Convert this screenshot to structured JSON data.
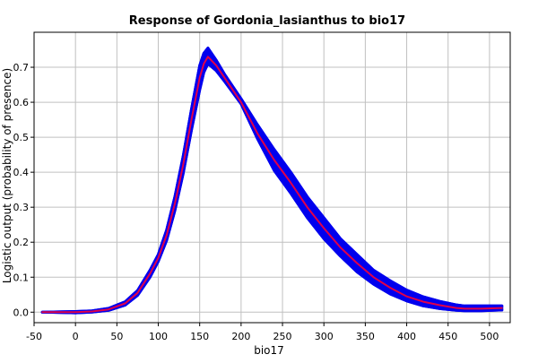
{
  "chart_data": {
    "type": "line",
    "title": "Response of Gordonia_lasianthus to bio17",
    "xlabel": "bio17",
    "ylabel": "Logistic output (probability of presence)",
    "xlim": [
      -50,
      525
    ],
    "ylim": [
      -0.03,
      0.8
    ],
    "xticks": [
      -50,
      0,
      50,
      100,
      150,
      200,
      250,
      300,
      350,
      400,
      450,
      500
    ],
    "yticks": [
      0.0,
      0.1,
      0.2,
      0.3,
      0.4,
      0.5,
      0.6,
      0.7
    ],
    "xtick_labels": [
      "-50",
      "0",
      "50",
      "100",
      "150",
      "200",
      "250",
      "300",
      "350",
      "400",
      "450",
      "500"
    ],
    "ytick_labels": [
      "0.0",
      "0.1",
      "0.2",
      "0.3",
      "0.4",
      "0.5",
      "0.6",
      "0.7"
    ],
    "grid": true,
    "series": [
      {
        "role": "mean",
        "color": "#e0004a",
        "x": [
          -40,
          0,
          20,
          40,
          60,
          75,
          90,
          100,
          110,
          120,
          130,
          140,
          150,
          155,
          160,
          170,
          180,
          200,
          220,
          240,
          260,
          280,
          300,
          320,
          340,
          360,
          380,
          400,
          420,
          440,
          460,
          470,
          490,
          515
        ],
        "y": [
          0.0,
          0.0,
          0.002,
          0.008,
          0.025,
          0.055,
          0.11,
          0.155,
          0.22,
          0.31,
          0.42,
          0.55,
          0.67,
          0.71,
          0.73,
          0.705,
          0.67,
          0.6,
          0.51,
          0.435,
          0.37,
          0.3,
          0.24,
          0.185,
          0.14,
          0.1,
          0.07,
          0.045,
          0.03,
          0.02,
          0.012,
          0.01,
          0.01,
          0.012
        ]
      },
      {
        "role": "upper",
        "color": "#0000ee",
        "x": [
          -40,
          0,
          20,
          40,
          60,
          75,
          90,
          100,
          110,
          120,
          130,
          140,
          150,
          155,
          160,
          170,
          180,
          200,
          220,
          240,
          260,
          280,
          300,
          320,
          340,
          360,
          380,
          400,
          420,
          440,
          460,
          470,
          490,
          515
        ],
        "y": [
          0.0,
          0.002,
          0.004,
          0.011,
          0.03,
          0.062,
          0.12,
          0.165,
          0.235,
          0.33,
          0.445,
          0.58,
          0.705,
          0.74,
          0.755,
          0.72,
          0.68,
          0.61,
          0.535,
          0.465,
          0.4,
          0.33,
          0.27,
          0.21,
          0.165,
          0.12,
          0.09,
          0.063,
          0.044,
          0.031,
          0.021,
          0.018,
          0.018,
          0.018
        ]
      },
      {
        "role": "lower",
        "color": "#0000ee",
        "x": [
          -40,
          0,
          20,
          40,
          60,
          75,
          90,
          100,
          110,
          120,
          130,
          140,
          150,
          155,
          160,
          170,
          180,
          200,
          220,
          240,
          260,
          280,
          300,
          320,
          340,
          360,
          380,
          400,
          420,
          440,
          460,
          470,
          490,
          515
        ],
        "y": [
          0.0,
          -0.002,
          0.0,
          0.005,
          0.02,
          0.048,
          0.1,
          0.145,
          0.205,
          0.29,
          0.395,
          0.52,
          0.635,
          0.685,
          0.71,
          0.69,
          0.66,
          0.595,
          0.495,
          0.405,
          0.34,
          0.27,
          0.21,
          0.16,
          0.115,
          0.08,
          0.052,
          0.032,
          0.018,
          0.01,
          0.005,
          0.004,
          0.004,
          0.006
        ]
      }
    ]
  }
}
